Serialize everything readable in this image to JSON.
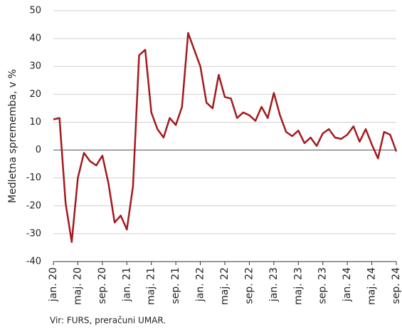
{
  "chart_data": {
    "type": "line",
    "y_label": "Medletna sprememba, v %",
    "source": "Vir: FURS, preračuni UMAR.",
    "categories": [
      "jan. 20",
      null,
      null,
      null,
      "maj. 20",
      null,
      null,
      null,
      "sep. 20",
      null,
      null,
      null,
      "jan. 21",
      null,
      null,
      null,
      "maj. 21",
      null,
      null,
      null,
      "sep. 21",
      null,
      null,
      null,
      "jan. 22",
      null,
      null,
      null,
      "maj. 22",
      null,
      null,
      null,
      "sep. 22",
      null,
      null,
      null,
      "jan. 23",
      null,
      null,
      null,
      "maj. 23",
      null,
      null,
      null,
      "sep. 23",
      null,
      null,
      null,
      "jan. 24",
      null,
      null,
      null,
      "maj. 24",
      null,
      null,
      null,
      "sep. 24"
    ],
    "values": [
      11,
      11.5,
      -19,
      -33,
      -10,
      -1,
      -4,
      -5.5,
      -2,
      -12,
      -26,
      -23.5,
      -28.5,
      -13,
      34,
      36,
      13.5,
      7.5,
      4.5,
      11.5,
      9,
      15.5,
      42,
      36,
      30,
      17,
      15,
      27,
      19,
      18.5,
      11.5,
      13.5,
      12.5,
      10.5,
      15.5,
      11.5,
      20.5,
      12.5,
      6.5,
      5,
      7,
      2.5,
      4.5,
      1.5,
      6,
      7.5,
      4.5,
      4,
      5.5,
      8.5,
      3,
      7.5,
      2,
      -3,
      6.5,
      5.5,
      -0.5
    ],
    "color": "#a31a1d",
    "ylim": [
      -40,
      50
    ],
    "yticks": [
      -40,
      -30,
      -20,
      -10,
      0,
      10,
      20,
      30,
      40,
      50
    ],
    "grid": true
  }
}
